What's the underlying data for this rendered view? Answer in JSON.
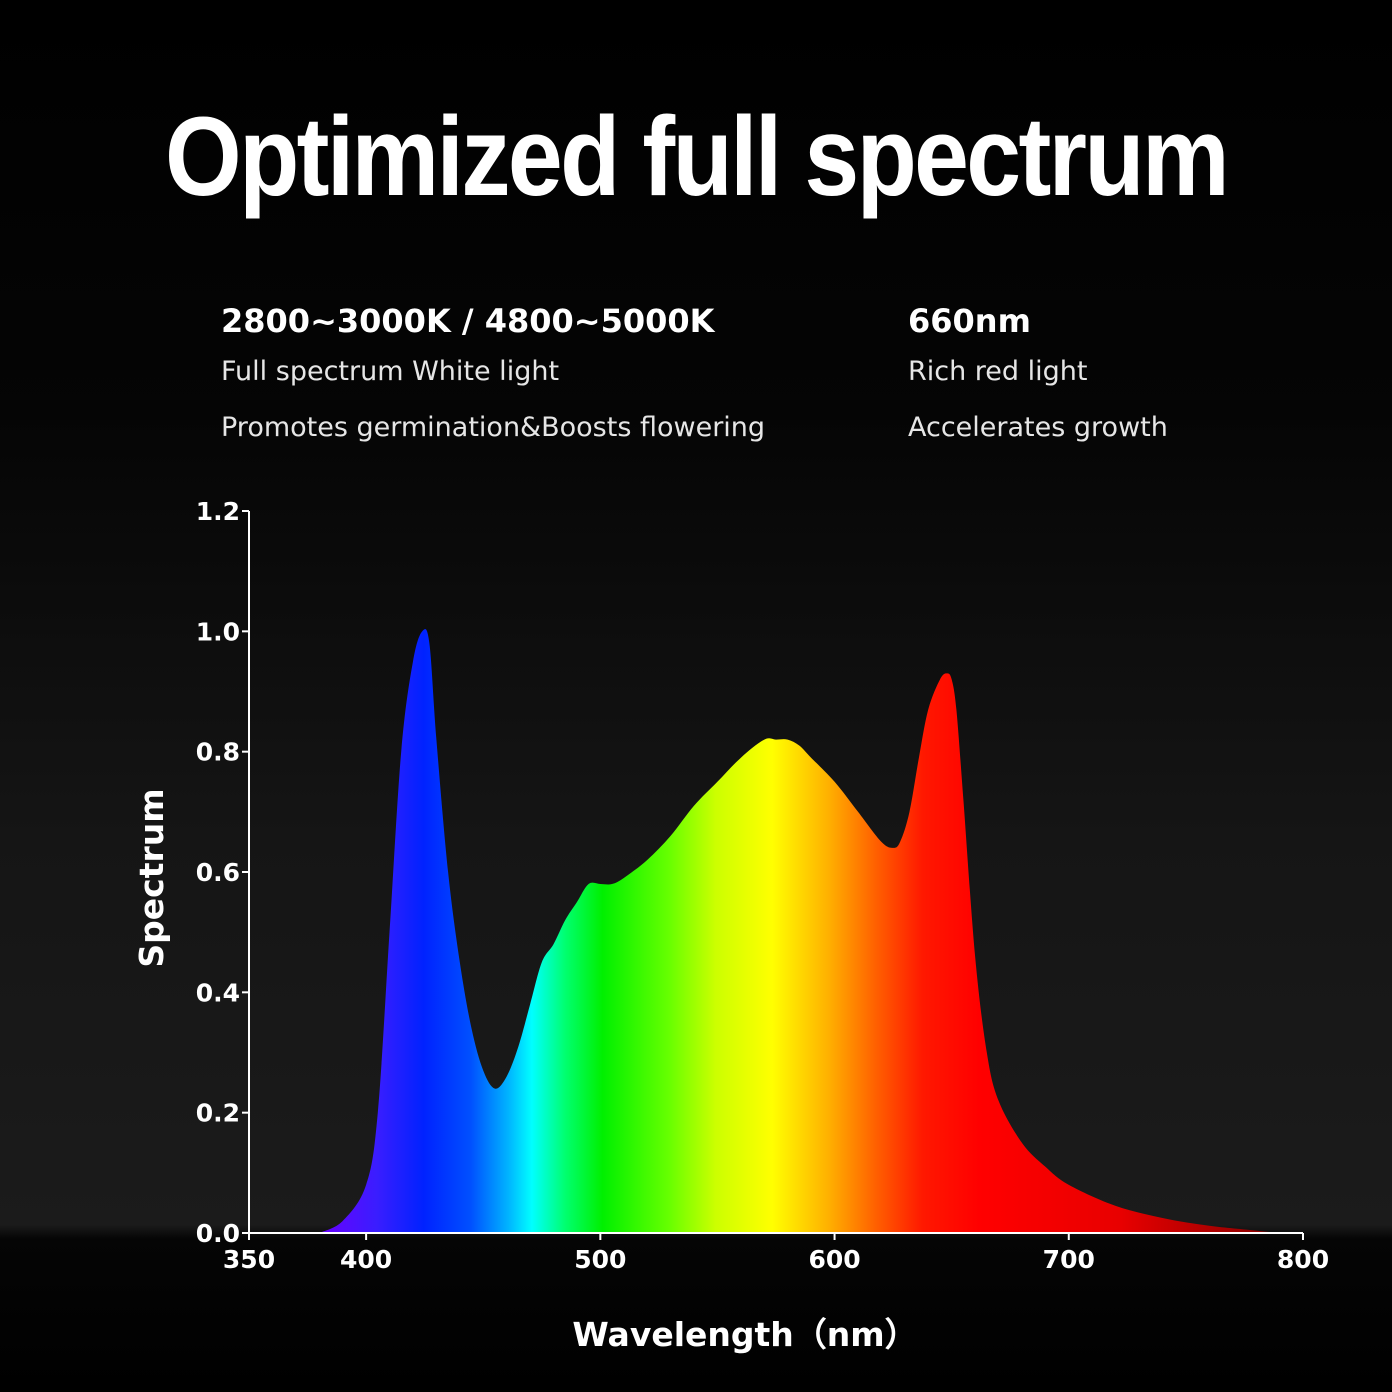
{
  "page": {
    "title": "Optimized full spectrum",
    "left_column": {
      "heading": "2800~3000K / 4800~5000K",
      "line1": "Full spectrum White light",
      "line2": "Promotes germination&Boosts flowering"
    },
    "right_column": {
      "heading": "660nm",
      "line1": "Rich red light",
      "line2": "Accelerates growth"
    }
  },
  "chart_data": {
    "type": "area",
    "title": "",
    "xlabel": "Wavelength（nm）",
    "ylabel": "Spectrum",
    "xlim": [
      350,
      800
    ],
    "ylim": [
      0,
      1.2
    ],
    "x_ticks": [
      350,
      400,
      500,
      600,
      700,
      800
    ],
    "x_tick_labels": [
      "350",
      "400",
      "500",
      "600",
      "700",
      "800"
    ],
    "y_ticks": [
      0,
      0.2,
      0.4,
      0.6,
      0.8,
      1.0,
      1.2
    ],
    "y_tick_labels": [
      "0.0",
      "0.2",
      "0.4",
      "0.6",
      "0.8",
      "1.0",
      "1.2"
    ],
    "grid": false,
    "fill": "visible-spectrum gradient",
    "series": [
      {
        "x": [
          380,
          390,
          400,
          405,
          410,
          415,
          420,
          424,
          427,
          430,
          435,
          440,
          445,
          450,
          455,
          460,
          465,
          470,
          475,
          480,
          485,
          490,
          495,
          500,
          505,
          510,
          520,
          530,
          540,
          550,
          560,
          570,
          575,
          580,
          585,
          590,
          600,
          610,
          620,
          625,
          628,
          632,
          636,
          640,
          645,
          648,
          650,
          652,
          655,
          660,
          665,
          670,
          680,
          690,
          700,
          720,
          740,
          760,
          780,
          790
        ],
        "y": [
          0.0,
          0.02,
          0.08,
          0.2,
          0.5,
          0.8,
          0.95,
          1.0,
          0.98,
          0.82,
          0.6,
          0.45,
          0.34,
          0.27,
          0.24,
          0.26,
          0.31,
          0.38,
          0.45,
          0.48,
          0.52,
          0.55,
          0.58,
          0.58,
          0.58,
          0.59,
          0.62,
          0.66,
          0.71,
          0.75,
          0.79,
          0.82,
          0.82,
          0.82,
          0.81,
          0.79,
          0.75,
          0.7,
          0.65,
          0.64,
          0.65,
          0.7,
          0.79,
          0.87,
          0.92,
          0.93,
          0.92,
          0.87,
          0.72,
          0.46,
          0.3,
          0.22,
          0.15,
          0.11,
          0.08,
          0.045,
          0.025,
          0.012,
          0.004,
          0.0
        ]
      }
    ]
  }
}
